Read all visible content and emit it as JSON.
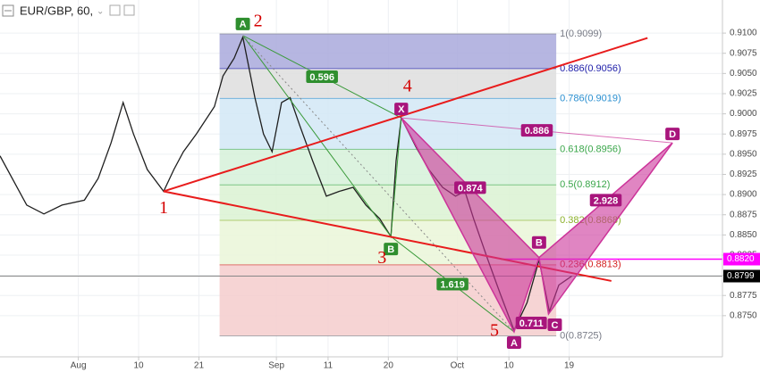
{
  "chart_data": {
    "type": "line",
    "title": "EUR/GBP, 60,",
    "color": "#1f1f1f",
    "x": [
      -9.1,
      -6.0,
      -4.0,
      -1.9,
      0.7,
      2.3,
      3.8,
      5.2,
      6.4,
      8.0,
      9.9,
      11.1,
      12.2,
      13.7,
      15.8,
      16.8,
      18.1,
      19.1,
      20.5,
      21.5,
      22.5,
      23.6,
      24.6,
      25.7,
      27.2,
      28.8,
      30.3,
      31.9,
      33.4,
      35.0,
      36.3,
      36.9,
      37.5,
      39.2,
      40.7,
      42.3,
      43.8,
      44.9,
      45.9,
      47.5,
      49.0,
      50.6,
      52.1,
      53.5,
      54.7,
      55.8,
      57.3
    ],
    "values": [
      0.8948,
      0.8887,
      0.8876,
      0.8887,
      0.8893,
      0.892,
      0.8964,
      0.9014,
      0.8975,
      0.8931,
      0.8904,
      0.8931,
      0.8953,
      0.8975,
      0.9009,
      0.9047,
      0.9069,
      0.9095,
      0.902,
      0.8975,
      0.8953,
      0.9014,
      0.902,
      0.8986,
      0.8942,
      0.8898,
      0.8904,
      0.8909,
      0.8887,
      0.887,
      0.8848,
      0.8942,
      0.8995,
      0.8959,
      0.8931,
      0.8909,
      0.8898,
      0.8904,
      0.887,
      0.8821,
      0.8777,
      0.8732,
      0.8766,
      0.8819,
      0.8755,
      0.8788,
      0.8799
    ],
    "xlim": [
      -9.1,
      74.8
    ],
    "ylim": [
      0.8699,
      0.9141
    ],
    "xticks": [
      {
        "value": 0,
        "label": "Aug"
      },
      {
        "value": 7,
        "label": "10"
      },
      {
        "value": 14,
        "label": "21"
      },
      {
        "value": 23,
        "label": "Sep"
      },
      {
        "value": 29,
        "label": "11"
      },
      {
        "value": 36,
        "label": "20"
      },
      {
        "value": 44,
        "label": "Oct"
      },
      {
        "value": 50,
        "label": "10"
      },
      {
        "value": 57,
        "label": "19"
      }
    ],
    "yticks": [
      {
        "value": 0.875,
        "label": "0.8750"
      },
      {
        "value": 0.8775,
        "label": "0.8775"
      },
      {
        "value": 0.88,
        "label": "0.8800"
      },
      {
        "value": 0.8825,
        "label": "0.8825"
      },
      {
        "value": 0.885,
        "label": "0.8850"
      },
      {
        "value": 0.8875,
        "label": "0.8875"
      },
      {
        "value": 0.89,
        "label": "0.8900"
      },
      {
        "value": 0.8925,
        "label": "0.8925"
      },
      {
        "value": 0.895,
        "label": "0.8950"
      },
      {
        "value": 0.8975,
        "label": "0.8975"
      },
      {
        "value": 0.9,
        "label": "0.9000"
      },
      {
        "value": 0.9025,
        "label": "0.9025"
      },
      {
        "value": 0.905,
        "label": "0.9050"
      },
      {
        "value": 0.9075,
        "label": "0.9075"
      },
      {
        "value": 0.91,
        "label": "0.9100"
      }
    ],
    "grid": true,
    "fib": {
      "x": [
        16.4,
        55.5
      ],
      "levels": [
        {
          "value": 0.9099,
          "label": "1(0.9099)",
          "color": "#787b86",
          "fill": "#a9a9dc"
        },
        {
          "value": 0.9056,
          "label": "0.886(0.9056)",
          "color": "#1c1ca8",
          "fill": "#dedede"
        },
        {
          "value": 0.9019,
          "label": "0.786(0.9019)",
          "color": "#2a8fd0",
          "fill": "#d2e8f6"
        },
        {
          "value": 0.8956,
          "label": "0.618(0.8956)",
          "color": "#3aa64a",
          "fill": "#d6f1d9"
        },
        {
          "value": 0.8912,
          "label": "0.5(0.8912)",
          "color": "#3aa64a",
          "fill": "#daf2d2"
        },
        {
          "value": 0.8868,
          "label": "0.382(0.8868)",
          "color": "#8bb02a",
          "fill": "#eaf6d8"
        },
        {
          "value": 0.8813,
          "label": "0.236(0.8813)",
          "color": "#d42020",
          "fill": "#f4cccc"
        },
        {
          "value": 0.8725,
          "label": "0(0.8725)",
          "color": "#787b86"
        }
      ]
    },
    "pattern": {
      "color": "#cc3399",
      "points": [
        {
          "label": "X",
          "x": 37.5,
          "value": 0.8995
        },
        {
          "label": "A",
          "x": 50.6,
          "value": 0.873
        },
        {
          "label": "B",
          "x": 53.5,
          "value": 0.8822
        },
        {
          "label": "C",
          "x": 54.6,
          "value": 0.8752
        },
        {
          "label": "D",
          "x": 69.0,
          "value": 0.8964
        }
      ],
      "ratios": [
        0.874,
        0.711,
        2.928,
        0.886
      ]
    },
    "abcd": {
      "color": "#3a9a3a",
      "points": [
        {
          "label": "A",
          "x": 19.1,
          "value": 0.9097
        },
        {
          "label": "B",
          "x": 36.3,
          "value": 0.8848
        }
      ],
      "ratios": [
        0.596,
        1.619
      ]
    },
    "trendlines": {
      "color": "#e81c1c",
      "lines": [
        {
          "x": [
            9.9,
            66.1
          ],
          "values": [
            0.8904,
            0.9094
          ]
        },
        {
          "x": [
            9.9,
            61.9
          ],
          "values": [
            0.8904,
            0.8793
          ]
        }
      ]
    },
    "waves": [
      {
        "label": "1",
        "x": 9.9,
        "value": 0.8904
      },
      {
        "label": "2",
        "x": 19.1,
        "value": 0.9097
      },
      {
        "label": "3",
        "x": 36.3,
        "value": 0.8848
      },
      {
        "label": "4",
        "x": 37.5,
        "value": 0.8995
      },
      {
        "label": "5",
        "x": 50.6,
        "value": 0.873
      }
    ],
    "price_lines": [
      {
        "value": 0.882,
        "label": "0.8820",
        "color": "#ff00ff"
      },
      {
        "value": 0.8799,
        "label": "0.8799",
        "color": "#000000"
      }
    ]
  }
}
